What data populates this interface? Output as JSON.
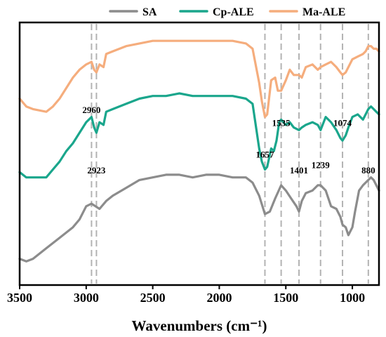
{
  "chart_data": {
    "type": "line",
    "title": "",
    "xlabel": "Wavenumbers (cm⁻¹)",
    "ylabel": "",
    "x_reversed": true,
    "xlim": [
      3500,
      800
    ],
    "x_ticks": [
      3500,
      3000,
      2500,
      2000,
      1500,
      1000
    ],
    "y_ticks_shown": false,
    "grid": false,
    "legend_position": "top",
    "reference_lines": [
      2960,
      2923,
      1657,
      1535,
      1401,
      1239,
      1074,
      880
    ],
    "annotations": [
      {
        "text": "2960",
        "x": 2960,
        "level": 0.655
      },
      {
        "text": "2923",
        "x": 2923,
        "level": 0.425
      },
      {
        "text": "1657",
        "x": 1657,
        "level": 0.485
      },
      {
        "text": "1401",
        "x": 1401,
        "level": 0.425
      },
      {
        "text": "1535",
        "x": 1535,
        "level": 0.605
      },
      {
        "text": "1239",
        "x": 1239,
        "level": 0.445
      },
      {
        "text": "1074",
        "x": 1074,
        "level": 0.605
      },
      {
        "text": "880",
        "x": 880,
        "level": 0.425
      }
    ],
    "series": [
      {
        "name": "SA",
        "color": "#8c8c8c",
        "points": [
          [
            3500,
            0.1
          ],
          [
            3450,
            0.09
          ],
          [
            3400,
            0.1
          ],
          [
            3300,
            0.14
          ],
          [
            3200,
            0.18
          ],
          [
            3100,
            0.22
          ],
          [
            3050,
            0.25
          ],
          [
            3000,
            0.3
          ],
          [
            2960,
            0.31
          ],
          [
            2930,
            0.3
          ],
          [
            2900,
            0.29
          ],
          [
            2850,
            0.32
          ],
          [
            2800,
            0.34
          ],
          [
            2700,
            0.37
          ],
          [
            2600,
            0.4
          ],
          [
            2500,
            0.41
          ],
          [
            2400,
            0.42
          ],
          [
            2300,
            0.42
          ],
          [
            2200,
            0.41
          ],
          [
            2100,
            0.42
          ],
          [
            2000,
            0.42
          ],
          [
            1900,
            0.41
          ],
          [
            1800,
            0.41
          ],
          [
            1750,
            0.39
          ],
          [
            1700,
            0.34
          ],
          [
            1657,
            0.27
          ],
          [
            1620,
            0.28
          ],
          [
            1580,
            0.33
          ],
          [
            1535,
            0.38
          ],
          [
            1500,
            0.36
          ],
          [
            1460,
            0.33
          ],
          [
            1420,
            0.3
          ],
          [
            1401,
            0.28
          ],
          [
            1380,
            0.32
          ],
          [
            1350,
            0.35
          ],
          [
            1300,
            0.36
          ],
          [
            1260,
            0.38
          ],
          [
            1239,
            0.38
          ],
          [
            1200,
            0.36
          ],
          [
            1160,
            0.3
          ],
          [
            1120,
            0.29
          ],
          [
            1090,
            0.26
          ],
          [
            1074,
            0.23
          ],
          [
            1050,
            0.22
          ],
          [
            1030,
            0.19
          ],
          [
            1000,
            0.22
          ],
          [
            980,
            0.28
          ],
          [
            950,
            0.36
          ],
          [
            920,
            0.38
          ],
          [
            900,
            0.39
          ],
          [
            880,
            0.4
          ],
          [
            860,
            0.41
          ],
          [
            840,
            0.4
          ],
          [
            820,
            0.38
          ],
          [
            800,
            0.36
          ]
        ]
      },
      {
        "name": "Cp-ALE",
        "color": "#1aa68c",
        "points": [
          [
            3500,
            0.43
          ],
          [
            3450,
            0.41
          ],
          [
            3400,
            0.41
          ],
          [
            3300,
            0.41
          ],
          [
            3250,
            0.44
          ],
          [
            3200,
            0.47
          ],
          [
            3150,
            0.51
          ],
          [
            3100,
            0.54
          ],
          [
            3050,
            0.58
          ],
          [
            3000,
            0.62
          ],
          [
            2960,
            0.64
          ],
          [
            2940,
            0.6
          ],
          [
            2923,
            0.58
          ],
          [
            2900,
            0.62
          ],
          [
            2870,
            0.61
          ],
          [
            2850,
            0.66
          ],
          [
            2800,
            0.67
          ],
          [
            2700,
            0.69
          ],
          [
            2600,
            0.71
          ],
          [
            2500,
            0.72
          ],
          [
            2400,
            0.72
          ],
          [
            2300,
            0.73
          ],
          [
            2200,
            0.72
          ],
          [
            2100,
            0.72
          ],
          [
            2000,
            0.72
          ],
          [
            1900,
            0.72
          ],
          [
            1800,
            0.71
          ],
          [
            1750,
            0.69
          ],
          [
            1700,
            0.52
          ],
          [
            1680,
            0.47
          ],
          [
            1657,
            0.44
          ],
          [
            1640,
            0.45
          ],
          [
            1610,
            0.52
          ],
          [
            1590,
            0.51
          ],
          [
            1570,
            0.55
          ],
          [
            1550,
            0.62
          ],
          [
            1535,
            0.63
          ],
          [
            1500,
            0.61
          ],
          [
            1470,
            0.62
          ],
          [
            1440,
            0.6
          ],
          [
            1401,
            0.59
          ],
          [
            1380,
            0.6
          ],
          [
            1350,
            0.61
          ],
          [
            1300,
            0.62
          ],
          [
            1260,
            0.61
          ],
          [
            1239,
            0.59
          ],
          [
            1200,
            0.64
          ],
          [
            1160,
            0.62
          ],
          [
            1120,
            0.59
          ],
          [
            1090,
            0.56
          ],
          [
            1074,
            0.55
          ],
          [
            1050,
            0.57
          ],
          [
            1030,
            0.6
          ],
          [
            1000,
            0.64
          ],
          [
            960,
            0.65
          ],
          [
            920,
            0.63
          ],
          [
            900,
            0.65
          ],
          [
            880,
            0.67
          ],
          [
            860,
            0.68
          ],
          [
            840,
            0.67
          ],
          [
            820,
            0.66
          ],
          [
            800,
            0.65
          ]
        ]
      },
      {
        "name": "Ma-ALE",
        "color": "#f5ad7d",
        "points": [
          [
            3500,
            0.71
          ],
          [
            3450,
            0.68
          ],
          [
            3400,
            0.67
          ],
          [
            3300,
            0.66
          ],
          [
            3250,
            0.68
          ],
          [
            3200,
            0.71
          ],
          [
            3150,
            0.75
          ],
          [
            3100,
            0.79
          ],
          [
            3050,
            0.82
          ],
          [
            3000,
            0.84
          ],
          [
            2960,
            0.85
          ],
          [
            2940,
            0.82
          ],
          [
            2923,
            0.81
          ],
          [
            2900,
            0.84
          ],
          [
            2870,
            0.83
          ],
          [
            2850,
            0.88
          ],
          [
            2800,
            0.89
          ],
          [
            2700,
            0.91
          ],
          [
            2600,
            0.92
          ],
          [
            2500,
            0.93
          ],
          [
            2400,
            0.93
          ],
          [
            2300,
            0.93
          ],
          [
            2200,
            0.93
          ],
          [
            2100,
            0.93
          ],
          [
            2000,
            0.93
          ],
          [
            1900,
            0.93
          ],
          [
            1800,
            0.92
          ],
          [
            1750,
            0.9
          ],
          [
            1700,
            0.77
          ],
          [
            1680,
            0.7
          ],
          [
            1657,
            0.64
          ],
          [
            1640,
            0.65
          ],
          [
            1610,
            0.78
          ],
          [
            1580,
            0.79
          ],
          [
            1560,
            0.74
          ],
          [
            1535,
            0.74
          ],
          [
            1500,
            0.78
          ],
          [
            1470,
            0.82
          ],
          [
            1440,
            0.8
          ],
          [
            1401,
            0.8
          ],
          [
            1380,
            0.79
          ],
          [
            1350,
            0.83
          ],
          [
            1300,
            0.84
          ],
          [
            1260,
            0.82
          ],
          [
            1239,
            0.83
          ],
          [
            1200,
            0.84
          ],
          [
            1160,
            0.85
          ],
          [
            1120,
            0.83
          ],
          [
            1090,
            0.81
          ],
          [
            1074,
            0.8
          ],
          [
            1050,
            0.81
          ],
          [
            1030,
            0.83
          ],
          [
            1000,
            0.86
          ],
          [
            960,
            0.87
          ],
          [
            920,
            0.88
          ],
          [
            900,
            0.89
          ],
          [
            880,
            0.91
          ],
          [
            860,
            0.91
          ],
          [
            840,
            0.9
          ],
          [
            820,
            0.9
          ],
          [
            800,
            0.89
          ]
        ]
      }
    ]
  }
}
